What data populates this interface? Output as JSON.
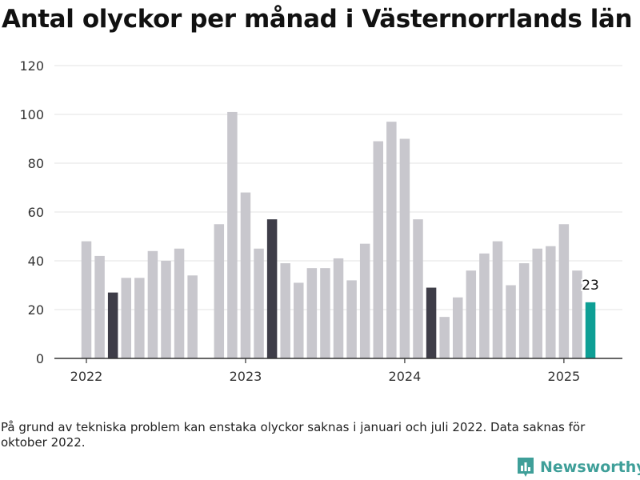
{
  "title": "Antal olyckor per månad i Västernorrlands län",
  "footnote": "På grund av tekniska problem kan enstaka olyckor saknas i januari och juli 2022. Data saknas för oktober 2022.",
  "brand": {
    "name": "Newsworthy",
    "color": "#3f9f99",
    "icon": "newsworthy-logo-icon"
  },
  "colors": {
    "regular": "#c8c7cd",
    "highlight": "#3e3d48",
    "latest": "#0e9f95",
    "grid": "#e3e3e3",
    "axis": "#333333"
  },
  "chart_data": {
    "type": "bar",
    "title": "Antal olyckor per månad i Västernorrlands län",
    "xlabel": "",
    "ylabel": "",
    "ylim": [
      0,
      120
    ],
    "yticks": [
      0,
      20,
      40,
      60,
      80,
      100,
      120
    ],
    "xtick_labels": [
      {
        "label": "2022",
        "month": "2022-01"
      },
      {
        "label": "2023",
        "month": "2023-01"
      },
      {
        "label": "2024",
        "month": "2024-01"
      },
      {
        "label": "2025",
        "month": "2025-01"
      }
    ],
    "grid": true,
    "legend": "none",
    "months": [
      "2022-01",
      "2022-02",
      "2022-03",
      "2022-04",
      "2022-05",
      "2022-06",
      "2022-07",
      "2022-08",
      "2022-09",
      "2022-10",
      "2022-11",
      "2022-12",
      "2023-01",
      "2023-02",
      "2023-03",
      "2023-04",
      "2023-05",
      "2023-06",
      "2023-07",
      "2023-08",
      "2023-09",
      "2023-10",
      "2023-11",
      "2023-12",
      "2024-01",
      "2024-02",
      "2024-03",
      "2024-04",
      "2024-05",
      "2024-06",
      "2024-07",
      "2024-08",
      "2024-09",
      "2024-10",
      "2024-11",
      "2024-12",
      "2025-01",
      "2025-02",
      "2025-03"
    ],
    "values": [
      48,
      42,
      27,
      33,
      33,
      44,
      40,
      45,
      34,
      null,
      55,
      101,
      68,
      45,
      57,
      39,
      31,
      37,
      37,
      41,
      32,
      47,
      89,
      97,
      90,
      57,
      29,
      17,
      25,
      36,
      43,
      48,
      30,
      39,
      45,
      46,
      55,
      36,
      23
    ],
    "highlighted_months": [
      "2022-03",
      "2023-03",
      "2024-03"
    ],
    "latest": {
      "month": "2025-03",
      "value": 23,
      "label": "23"
    }
  }
}
